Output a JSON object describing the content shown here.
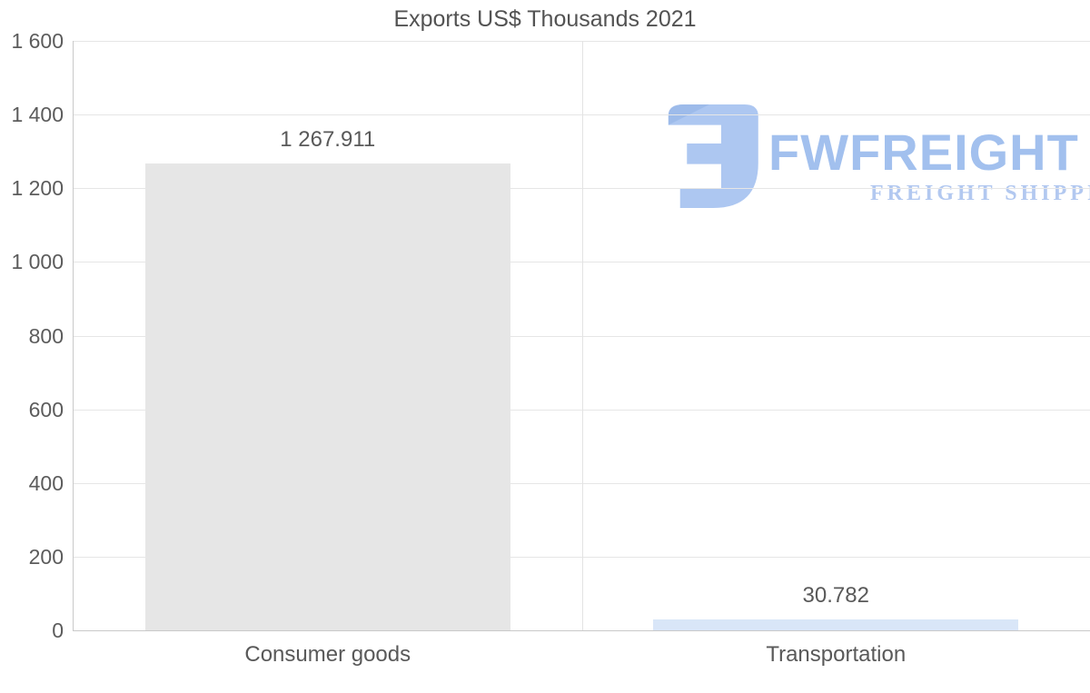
{
  "title": "Exports US$ Thousands 2021",
  "logo": {
    "brand": "FWFREIGHT",
    "tagline": "FREIGHT SHIPPING",
    "icon": "fwfreight-monogram-icon",
    "color_icon": "#adc7f1",
    "color_icon_shade": "#8fb1e4",
    "color_brand": "#a2c0ee",
    "color_tagline": "#b2c8f0"
  },
  "chart_data": {
    "type": "bar",
    "title": "Exports US$ Thousands 2021",
    "categories": [
      "Consumer goods",
      "Transportation"
    ],
    "values": [
      1267.911,
      30.782
    ],
    "value_labels": [
      "1 267.911",
      "30.782"
    ],
    "bar_colors": [
      "#e6e6e6",
      "#d9e6f8"
    ],
    "xlabel": "",
    "ylabel": "",
    "ylim": [
      0,
      1600
    ],
    "yticks": [
      {
        "value": 0,
        "label": "0"
      },
      {
        "value": 200,
        "label": "200"
      },
      {
        "value": 400,
        "label": "400"
      },
      {
        "value": 600,
        "label": "600"
      },
      {
        "value": 800,
        "label": "800"
      },
      {
        "value": 1000,
        "label": "1 000"
      },
      {
        "value": 1200,
        "label": "1 200"
      },
      {
        "value": 1400,
        "label": "1 400"
      },
      {
        "value": 1600,
        "label": "1 600"
      }
    ],
    "grid": "horizontal",
    "legend": "none",
    "text_color": "#595959"
  }
}
